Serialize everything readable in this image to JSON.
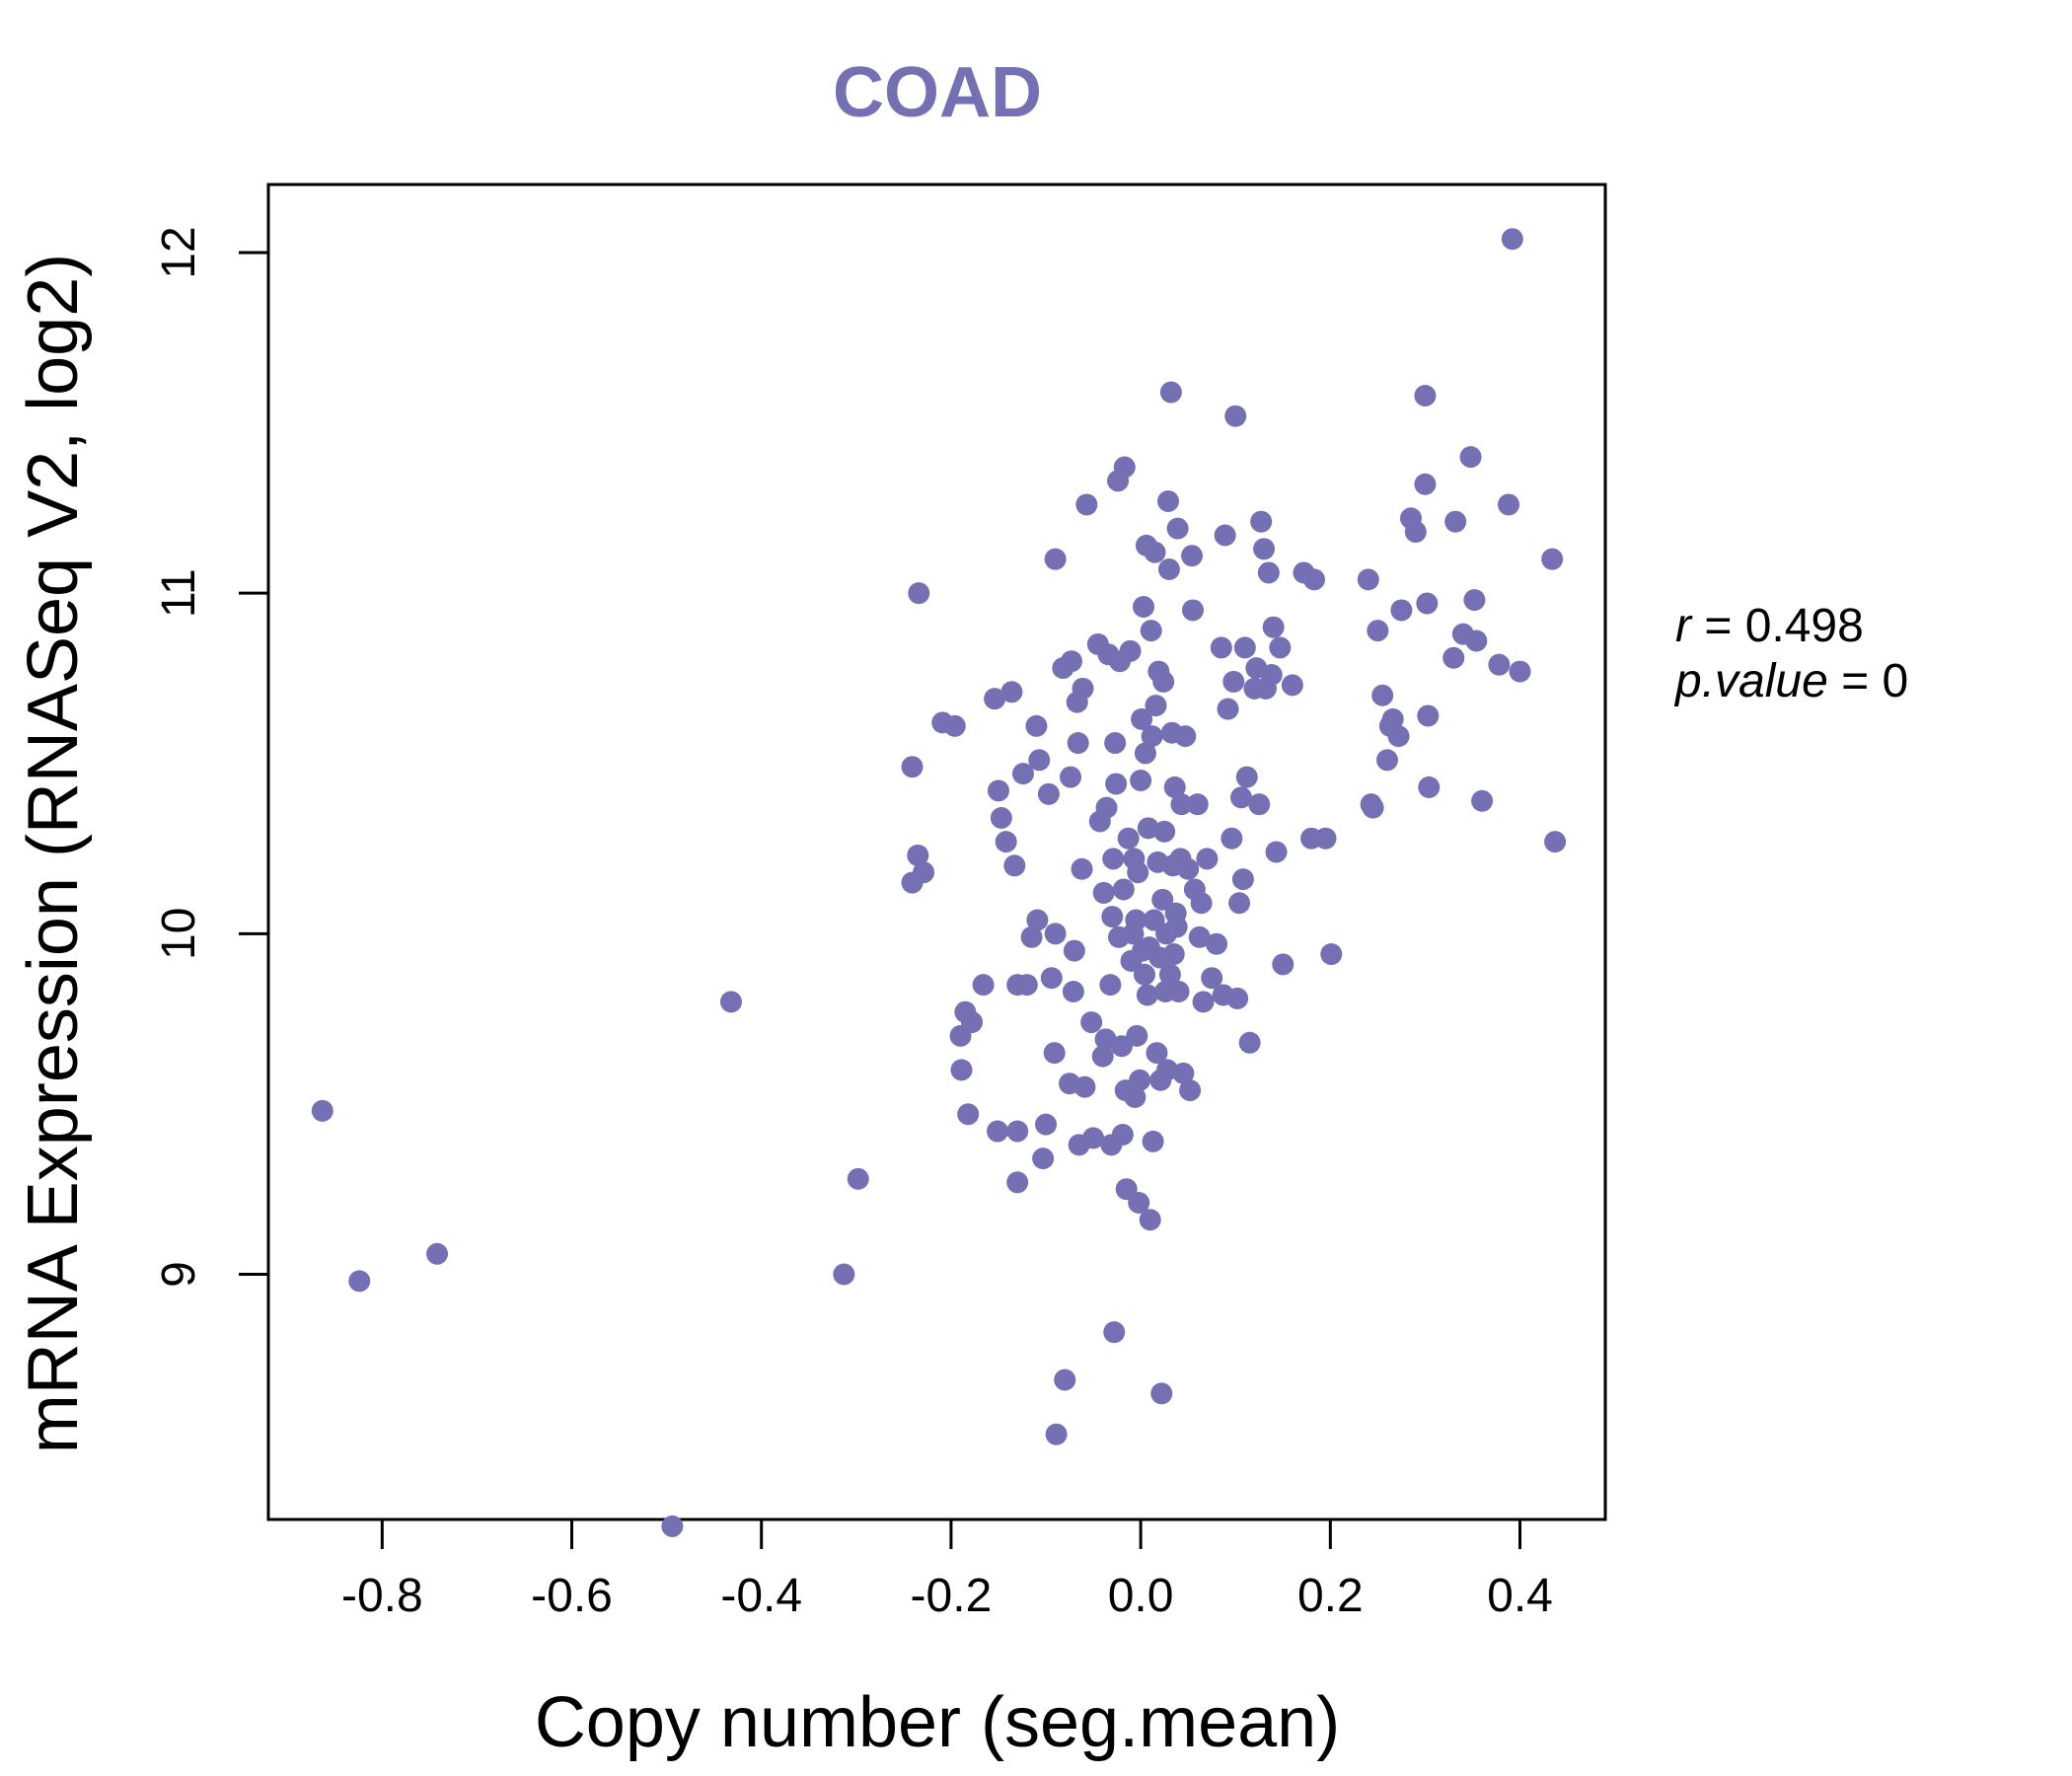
{
  "chart_data": {
    "type": "scatter",
    "title": "COAD",
    "xlabel": "Copy number (seg.mean)",
    "ylabel": "mRNA Expression (RNASeq V2, log2)",
    "xlim": [
      -0.92,
      0.49
    ],
    "ylim": [
      8.28,
      12.2
    ],
    "xticks": [
      -0.8,
      -0.6,
      -0.4,
      -0.2,
      0.0,
      0.2,
      0.4
    ],
    "xtick_labels": [
      "-0.8",
      "-0.6",
      "-0.4",
      "-0.2",
      "0.0",
      "0.2",
      "0.4"
    ],
    "yticks": [
      9,
      10,
      11,
      12
    ],
    "ytick_labels": [
      "9",
      "10",
      "11",
      "12"
    ],
    "stats": {
      "r_label": "r",
      "r_value": "0.498",
      "p_label": "p.value",
      "p_value": "0"
    },
    "colors": {
      "points": "#7570b3",
      "title": "#7570b3",
      "axis": "#000000"
    },
    "grid": false,
    "series": [
      {
        "name": "COAD",
        "points": [
          [
            -0.863,
            9.48
          ],
          [
            -0.824,
            8.98
          ],
          [
            -0.742,
            9.06
          ],
          [
            -0.494,
            8.26
          ],
          [
            -0.432,
            9.8
          ],
          [
            -0.313,
            9.0
          ],
          [
            -0.298,
            9.28
          ],
          [
            -0.241,
            10.15
          ],
          [
            -0.241,
            10.49
          ],
          [
            -0.235,
            10.23
          ],
          [
            -0.234,
            11.0
          ],
          [
            -0.229,
            10.18
          ],
          [
            -0.209,
            10.62
          ],
          [
            -0.196,
            10.61
          ],
          [
            -0.19,
            9.7
          ],
          [
            -0.189,
            9.6
          ],
          [
            -0.185,
            9.77
          ],
          [
            -0.182,
            9.47
          ],
          [
            -0.178,
            9.74
          ],
          [
            -0.166,
            9.85
          ],
          [
            -0.154,
            10.69
          ],
          [
            -0.151,
            9.42
          ],
          [
            -0.15,
            10.42
          ],
          [
            -0.147,
            10.34
          ],
          [
            -0.142,
            10.27
          ],
          [
            -0.136,
            10.71
          ],
          [
            -0.133,
            10.2
          ],
          [
            -0.13,
            9.85
          ],
          [
            -0.13,
            9.27
          ],
          [
            -0.13,
            9.42
          ],
          [
            -0.124,
            10.47
          ],
          [
            -0.12,
            9.85
          ],
          [
            -0.115,
            9.99
          ],
          [
            -0.11,
            10.61
          ],
          [
            -0.109,
            10.04
          ],
          [
            -0.107,
            10.51
          ],
          [
            -0.103,
            9.34
          ],
          [
            -0.1,
            9.44
          ],
          [
            -0.097,
            10.41
          ],
          [
            -0.094,
            9.87
          ],
          [
            -0.091,
            9.65
          ],
          [
            -0.09,
            10.0
          ],
          [
            -0.09,
            11.1
          ],
          [
            -0.089,
            8.53
          ],
          [
            -0.082,
            10.78
          ],
          [
            -0.08,
            8.69
          ],
          [
            -0.075,
            9.56
          ],
          [
            -0.074,
            10.46
          ],
          [
            -0.073,
            10.8
          ],
          [
            -0.071,
            9.83
          ],
          [
            -0.07,
            9.95
          ],
          [
            -0.067,
            10.68
          ],
          [
            -0.066,
            10.56
          ],
          [
            -0.065,
            9.38
          ],
          [
            -0.062,
            10.19
          ],
          [
            -0.061,
            10.72
          ],
          [
            -0.059,
            9.55
          ],
          [
            -0.057,
            11.26
          ],
          [
            -0.052,
            9.74
          ],
          [
            -0.05,
            9.4
          ],
          [
            -0.045,
            10.85
          ],
          [
            -0.043,
            10.33
          ],
          [
            -0.04,
            9.64
          ],
          [
            -0.039,
            10.12
          ],
          [
            -0.037,
            9.69
          ],
          [
            -0.036,
            10.37
          ],
          [
            -0.034,
            10.82
          ],
          [
            -0.032,
            9.85
          ],
          [
            -0.031,
            9.38
          ],
          [
            -0.03,
            10.05
          ],
          [
            -0.029,
            10.22
          ],
          [
            -0.028,
            8.83
          ],
          [
            -0.027,
            10.56
          ],
          [
            -0.026,
            10.44
          ],
          [
            -0.024,
            11.33
          ],
          [
            -0.023,
            9.99
          ],
          [
            -0.022,
            10.8
          ],
          [
            -0.02,
            9.67
          ],
          [
            -0.019,
            9.41
          ],
          [
            -0.018,
            10.13
          ],
          [
            -0.017,
            11.37
          ],
          [
            -0.016,
            9.54
          ],
          [
            -0.015,
            9.25
          ],
          [
            -0.013,
            10.28
          ],
          [
            -0.011,
            10.83
          ],
          [
            -0.01,
            9.92
          ],
          [
            -0.008,
            10.0
          ],
          [
            -0.007,
            10.22
          ],
          [
            -0.006,
            9.52
          ],
          [
            -0.005,
            10.04
          ],
          [
            -0.004,
            9.7
          ],
          [
            -0.003,
            10.18
          ],
          [
            -0.002,
            9.21
          ],
          [
            -0.001,
            9.57
          ],
          [
            0.0,
            10.45
          ],
          [
            0.001,
            10.63
          ],
          [
            0.002,
            9.95
          ],
          [
            0.003,
            10.96
          ],
          [
            0.004,
            9.88
          ],
          [
            0.005,
            10.53
          ],
          [
            0.006,
            11.14
          ],
          [
            0.007,
            9.82
          ],
          [
            0.008,
            10.31
          ],
          [
            0.009,
            9.96
          ],
          [
            0.01,
            9.16
          ],
          [
            0.011,
            10.89
          ],
          [
            0.012,
            10.58
          ],
          [
            0.013,
            9.39
          ],
          [
            0.014,
            10.04
          ],
          [
            0.015,
            11.12
          ],
          [
            0.016,
            10.67
          ],
          [
            0.017,
            9.65
          ],
          [
            0.018,
            10.21
          ],
          [
            0.019,
            10.77
          ],
          [
            0.02,
            9.93
          ],
          [
            0.021,
            9.57
          ],
          [
            0.022,
            8.65
          ],
          [
            0.023,
            10.1
          ],
          [
            0.024,
            10.74
          ],
          [
            0.025,
            10.3
          ],
          [
            0.026,
            9.83
          ],
          [
            0.027,
            10.0
          ],
          [
            0.028,
            9.6
          ],
          [
            0.029,
            11.27
          ],
          [
            0.03,
            11.07
          ],
          [
            0.031,
            9.88
          ],
          [
            0.032,
            11.59
          ],
          [
            0.033,
            10.59
          ],
          [
            0.034,
            10.2
          ],
          [
            0.035,
            9.94
          ],
          [
            0.036,
            10.43
          ],
          [
            0.037,
            10.06
          ],
          [
            0.038,
            10.02
          ],
          [
            0.039,
            11.19
          ],
          [
            0.04,
            9.83
          ],
          [
            0.042,
            10.22
          ],
          [
            0.043,
            10.38
          ],
          [
            0.045,
            9.59
          ],
          [
            0.047,
            10.58
          ],
          [
            0.05,
            10.19
          ],
          [
            0.052,
            9.54
          ],
          [
            0.054,
            11.11
          ],
          [
            0.055,
            10.95
          ],
          [
            0.057,
            10.13
          ],
          [
            0.06,
            10.38
          ],
          [
            0.062,
            9.99
          ],
          [
            0.064,
            10.09
          ],
          [
            0.066,
            9.8
          ],
          [
            0.07,
            10.22
          ],
          [
            0.075,
            9.87
          ],
          [
            0.08,
            9.97
          ],
          [
            0.085,
            10.84
          ],
          [
            0.087,
            9.82
          ],
          [
            0.089,
            11.17
          ],
          [
            0.092,
            10.66
          ],
          [
            0.096,
            10.28
          ],
          [
            0.098,
            10.74
          ],
          [
            0.1,
            11.52
          ],
          [
            0.102,
            9.81
          ],
          [
            0.104,
            10.09
          ],
          [
            0.106,
            10.4
          ],
          [
            0.108,
            10.16
          ],
          [
            0.11,
            10.84
          ],
          [
            0.112,
            10.46
          ],
          [
            0.115,
            9.68
          ],
          [
            0.12,
            10.72
          ],
          [
            0.122,
            10.78
          ],
          [
            0.125,
            10.38
          ],
          [
            0.127,
            11.21
          ],
          [
            0.13,
            11.13
          ],
          [
            0.132,
            10.72
          ],
          [
            0.135,
            11.06
          ],
          [
            0.138,
            10.76
          ],
          [
            0.14,
            10.9
          ],
          [
            0.143,
            10.24
          ],
          [
            0.147,
            10.84
          ],
          [
            0.15,
            9.91
          ],
          [
            0.16,
            10.73
          ],
          [
            0.172,
            11.06
          ],
          [
            0.18,
            10.28
          ],
          [
            0.183,
            11.04
          ],
          [
            0.195,
            10.28
          ],
          [
            0.201,
            9.94
          ],
          [
            0.24,
            11.04
          ],
          [
            0.243,
            10.38
          ],
          [
            0.245,
            10.37
          ],
          [
            0.25,
            10.89
          ],
          [
            0.255,
            10.7
          ],
          [
            0.26,
            10.51
          ],
          [
            0.263,
            10.61
          ],
          [
            0.266,
            10.63
          ],
          [
            0.272,
            10.58
          ],
          [
            0.275,
            10.95
          ],
          [
            0.285,
            11.22
          ],
          [
            0.29,
            11.18
          ],
          [
            0.3,
            11.58
          ],
          [
            0.3,
            11.32
          ],
          [
            0.302,
            10.97
          ],
          [
            0.303,
            10.64
          ],
          [
            0.304,
            10.43
          ],
          [
            0.33,
            10.81
          ],
          [
            0.332,
            11.21
          ],
          [
            0.34,
            10.88
          ],
          [
            0.348,
            11.4
          ],
          [
            0.352,
            10.98
          ],
          [
            0.354,
            10.86
          ],
          [
            0.36,
            10.39
          ],
          [
            0.378,
            10.79
          ],
          [
            0.388,
            11.26
          ],
          [
            0.392,
            12.04
          ],
          [
            0.4,
            10.77
          ],
          [
            0.434,
            11.1
          ],
          [
            0.437,
            10.27
          ]
        ]
      }
    ]
  }
}
